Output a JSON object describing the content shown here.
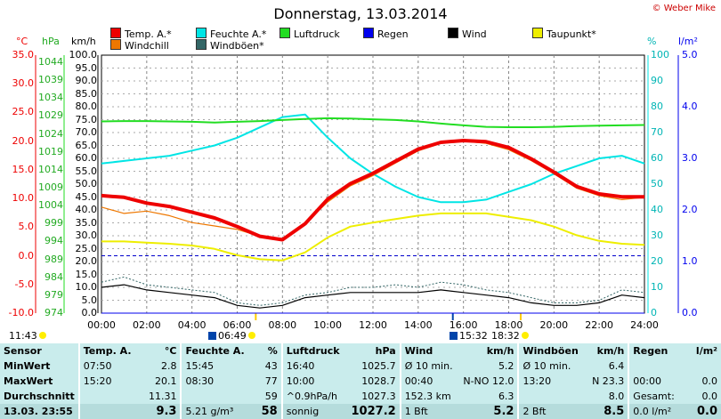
{
  "title": "Donnerstag, 13.03.2014",
  "copyright": "© Weber Mike",
  "legend": [
    {
      "label": "Temp. A.*",
      "color": "#ee0000"
    },
    {
      "label": "Feuchte A.*",
      "color": "#00e5e5"
    },
    {
      "label": "Luftdruck",
      "color": "#22dd22"
    },
    {
      "label": "Regen",
      "color": "#0000ee"
    },
    {
      "label": "Wind",
      "color": "#000000"
    },
    {
      "label": "Taupunkt*",
      "color": "#eeee00"
    },
    {
      "label": "Windchill",
      "color": "#ee7700"
    },
    {
      "label": "Windböen*",
      "color": "#336666"
    }
  ],
  "axes": {
    "temp_unit": "°C",
    "pressure_unit": "hPa",
    "wind_unit": "km/h",
    "humidity_unit": "%",
    "rain_unit": "l/m²",
    "temp_ticks": [
      "35.0",
      "30.0",
      "25.0",
      "20.0",
      "15.0",
      "10.0",
      "5.0",
      "0.0",
      "-5.0",
      "-10.0"
    ],
    "pressure_ticks": [
      "1044",
      "1039",
      "1034",
      "1029",
      "1024",
      "1019",
      "1014",
      "1009",
      "1004",
      "999",
      "994",
      "989",
      "984",
      "979",
      "974"
    ],
    "wind_ticks": [
      "100.0",
      "95.0",
      "90.0",
      "85.0",
      "80.0",
      "75.0",
      "70.0",
      "65.0",
      "60.0",
      "55.0",
      "50.0",
      "45.0",
      "40.0",
      "35.0",
      "30.0",
      "25.0",
      "20.0",
      "15.0",
      "10.0",
      "5.0",
      "0.0"
    ],
    "humidity_ticks": [
      "100",
      "90",
      "80",
      "70",
      "60",
      "50",
      "40",
      "30",
      "20",
      "10",
      "0"
    ],
    "rain_ticks": [
      "5.0",
      "4.0",
      "3.0",
      "2.0",
      "1.0",
      "0.0"
    ],
    "time_ticks": [
      "00:00",
      "02:00",
      "04:00",
      "06:00",
      "08:00",
      "10:00",
      "12:00",
      "14:00",
      "16:00",
      "18:00",
      "20:00",
      "22:00",
      "24:00"
    ]
  },
  "events": {
    "sunrise_prev": "11:43",
    "sunrise": "06:49",
    "moonrise": "15:32",
    "sunset": "18:32"
  },
  "chart_data": {
    "type": "line",
    "x_unit": "hour",
    "x": [
      0,
      1,
      2,
      3,
      4,
      5,
      6,
      7,
      8,
      9,
      10,
      11,
      12,
      13,
      14,
      15,
      16,
      17,
      18,
      19,
      20,
      21,
      22,
      23,
      24
    ],
    "xlim": [
      0,
      24
    ],
    "series": [
      {
        "name": "Temp. A.*",
        "axis": "°C",
        "ylim": [
          -10,
          35
        ],
        "color": "#ee0000",
        "values": [
          10.5,
          10.2,
          9.2,
          8.6,
          7.6,
          6.6,
          5.1,
          3.4,
          2.8,
          5.6,
          9.9,
          12.6,
          14.4,
          16.5,
          18.6,
          19.8,
          20.1,
          19.9,
          18.9,
          16.9,
          14.6,
          12.1,
          10.8,
          10.3,
          10.3
        ]
      },
      {
        "name": "Windchill",
        "axis": "°C",
        "ylim": [
          -10,
          35
        ],
        "color": "#ee7700",
        "values": [
          8.5,
          7.4,
          7.8,
          7.0,
          5.8,
          5.2,
          4.6,
          3.4,
          2.8,
          5.6,
          9.4,
          12.2,
          14.0,
          16.2,
          18.3,
          19.6,
          20.0,
          19.6,
          18.5,
          16.6,
          14.3,
          11.8,
          10.5,
          9.8,
          10.2
        ]
      },
      {
        "name": "Taupunkt*",
        "axis": "°C",
        "ylim": [
          -10,
          35
        ],
        "color": "#eeee00",
        "values": [
          2.5,
          2.5,
          2.3,
          2.1,
          1.8,
          1.2,
          0.1,
          -0.6,
          -0.8,
          0.6,
          3.2,
          5.1,
          5.8,
          6.4,
          7.0,
          7.4,
          7.4,
          7.4,
          6.8,
          6.2,
          5.1,
          3.6,
          2.6,
          2.1,
          1.9
        ]
      },
      {
        "name": "Feuchte A.*",
        "axis": "%",
        "ylim": [
          0,
          100
        ],
        "color": "#00e5e5",
        "values": [
          58,
          59,
          60,
          61,
          63,
          65,
          68,
          72,
          76,
          77,
          68,
          60,
          54,
          49,
          45,
          43,
          43,
          44,
          47,
          50,
          54,
          57,
          60,
          61,
          58
        ]
      },
      {
        "name": "Luftdruck",
        "axis": "hPa",
        "ylim": [
          974,
          1046
        ],
        "color": "#22dd22",
        "values": [
          1027.5,
          1027.6,
          1027.6,
          1027.5,
          1027.4,
          1027.2,
          1027.4,
          1027.6,
          1027.9,
          1028.2,
          1028.4,
          1028.3,
          1028.1,
          1027.9,
          1027.5,
          1026.9,
          1026.4,
          1026.0,
          1025.9,
          1025.9,
          1026.0,
          1026.2,
          1026.3,
          1026.4,
          1026.5
        ]
      },
      {
        "name": "Wind",
        "axis": "km/h",
        "ylim": [
          0,
          100
        ],
        "color": "#000000",
        "values": [
          10,
          11,
          9,
          8,
          7,
          6,
          3,
          2,
          3,
          6,
          7,
          8,
          8,
          8,
          8,
          9,
          8,
          7,
          6,
          4,
          3,
          3,
          4,
          7,
          6
        ]
      },
      {
        "name": "Windböen*",
        "axis": "km/h",
        "ylim": [
          0,
          100
        ],
        "color": "#336666",
        "values": [
          12,
          14,
          11,
          10,
          9,
          8,
          4,
          3,
          4,
          7,
          8,
          10,
          10,
          11,
          10,
          12,
          11,
          9,
          8,
          6,
          4,
          4,
          5,
          9,
          8
        ]
      },
      {
        "name": "Regen",
        "axis": "l/m²",
        "ylim": [
          0,
          5
        ],
        "color": "#0000ee",
        "values": [
          0,
          0,
          0,
          0,
          0,
          0,
          0,
          0,
          0,
          0,
          0,
          0,
          0,
          0,
          0,
          0,
          0,
          0,
          0,
          0,
          0,
          0,
          0,
          0,
          0
        ]
      }
    ],
    "grid": true
  },
  "stats": {
    "header": [
      "Sensor",
      "Temp. A.",
      "°C",
      "Feuchte A.",
      "%",
      "Luftdruck",
      "hPa",
      "Wind",
      "km/h",
      "Windböen",
      "km/h",
      "Regen",
      "l/m²"
    ],
    "rows": [
      {
        "label": "MinWert",
        "cells": [
          "07:50",
          "2.8",
          "15:45",
          "43",
          "16:40",
          "1025.7",
          "Ø 10 min.",
          "5.2",
          "Ø 10 min.",
          "6.4",
          "",
          ""
        ]
      },
      {
        "label": "MaxWert",
        "cells": [
          "15:20",
          "20.1",
          "08:30",
          "77",
          "10:00",
          "1028.7",
          "00:40",
          "N-NO 12.0",
          "13:20",
          "N 23.3",
          "00:00",
          "0.0"
        ]
      },
      {
        "label": "Durchschnitt",
        "cells": [
          "",
          "11.31",
          "",
          "59",
          "^0.9hPa/h",
          "1027.3",
          "152.3 km",
          "6.3",
          "",
          "8.0",
          "Gesamt:",
          "0.0"
        ]
      },
      {
        "label": "13.03. 23:55",
        "cells": [
          "",
          "9.3",
          "5.21 g/m³",
          "58",
          "sonnig",
          "1027.2",
          "1 Bft",
          "5.2",
          "2 Bft",
          "8.5",
          "0.0 l/m²",
          "0.0"
        ]
      }
    ]
  }
}
